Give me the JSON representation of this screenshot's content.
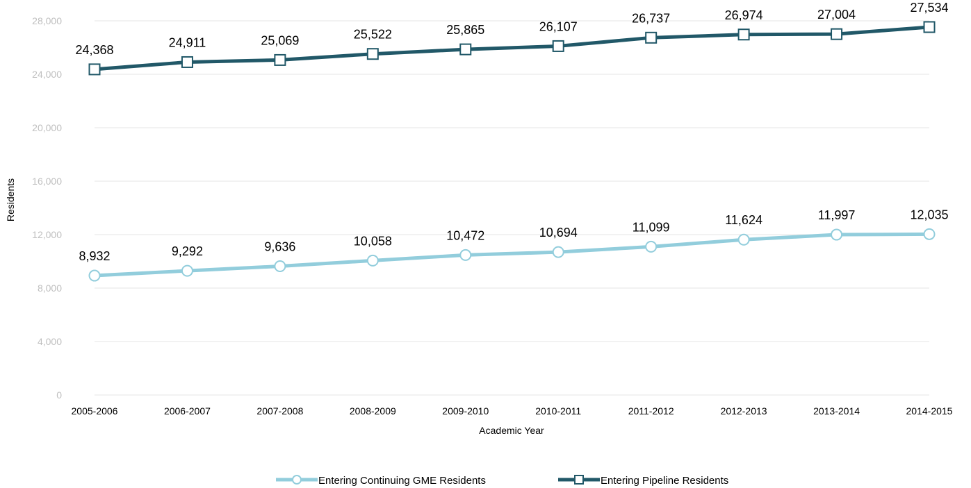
{
  "chart_data": {
    "type": "line",
    "categories": [
      "2005-2006",
      "2006-2007",
      "2007-2008",
      "2008-2009",
      "2009-2010",
      "2010-2011",
      "2011-2012",
      "2012-2013",
      "2013-2014",
      "2014-2015"
    ],
    "series": [
      {
        "name": "Entering Continuing GME Residents",
        "values": [
          8932,
          9292,
          9636,
          10058,
          10472,
          10694,
          11099,
          11624,
          11997,
          12035
        ],
        "labels": [
          "8,932",
          "9,292",
          "9,636",
          "10,058",
          "10,472",
          "10,694",
          "11,099",
          "11,624",
          "11,997",
          "12,035"
        ],
        "color": "#92cddc",
        "marker": "circle"
      },
      {
        "name": "Entering Pipeline Residents",
        "values": [
          24368,
          24911,
          25069,
          25522,
          25865,
          26107,
          26737,
          26974,
          27004,
          27534
        ],
        "labels": [
          "24,368",
          "24,911",
          "25,069",
          "25,522",
          "25,865",
          "26,107",
          "26,737",
          "26,974",
          "27,004",
          "27,534"
        ],
        "color": "#215868",
        "marker": "square"
      }
    ],
    "xlabel": "Academic Year",
    "ylabel": "Residents",
    "ylim": [
      0,
      28000
    ],
    "yticks": [
      0,
      4000,
      8000,
      12000,
      16000,
      20000,
      24000,
      28000
    ],
    "ytick_labels": [
      "0",
      "4,000",
      "8,000",
      "12,000",
      "16,000",
      "20,000",
      "24,000",
      "28,000"
    ],
    "grid": true,
    "legend_position": "bottom"
  }
}
